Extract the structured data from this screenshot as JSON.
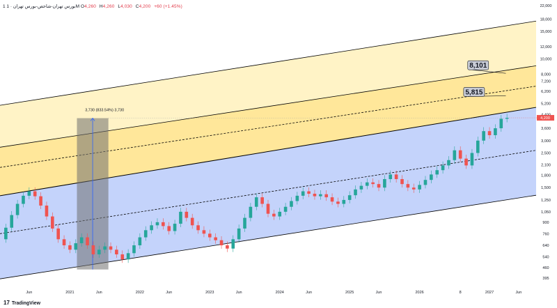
{
  "header": {
    "symbol": "1 بورس تهران-شاخص-بورس تهران · 1M",
    "open_label": "O",
    "open_value": "4,260",
    "high_label": "H",
    "high_value": "4,260",
    "low_label": "L",
    "low_value": "4,030",
    "close_label": "C",
    "close_value": "4,200",
    "change": "+60 (+1.45%)"
  },
  "footer": {
    "logo_mark": "17",
    "brand": "TradingView"
  },
  "colors": {
    "up": "#26a69a",
    "down": "#ef5350",
    "blue_zone": "#c4d3fb",
    "yellow_light": "#fff3c6",
    "yellow_mid": "#ffe79a",
    "measure": "#707070",
    "price_tag": "#ef5350"
  },
  "chart_data": {
    "type": "candlestick",
    "y_scale": "log",
    "ylim": [
      360,
      22000
    ],
    "y_ticks": [
      "22,000",
      "18,000",
      "15,000",
      "12,000",
      "10,000",
      "8,000",
      "7,200",
      "6,200",
      "5,200",
      "4,400",
      "3,600",
      "3,000",
      "2,500",
      "2,100",
      "1,800",
      "1,500",
      "1,250",
      "1,050",
      "900",
      "760",
      "640",
      "540",
      "460",
      "395"
    ],
    "y_tick_values": [
      22000,
      18000,
      15000,
      12000,
      10000,
      8000,
      7200,
      6200,
      5200,
      4400,
      3600,
      3000,
      2500,
      2100,
      1800,
      1500,
      1250,
      1050,
      900,
      760,
      640,
      540,
      460,
      395
    ],
    "x_ticks": [
      "Jun",
      "2021",
      "Jun",
      "2022",
      "Jun",
      "2023",
      "Jun",
      "2024",
      "Jun",
      "2025",
      "Jun",
      "2026",
      "8",
      "2027",
      "Jun"
    ],
    "x_tick_months": [
      5,
      12,
      17,
      24,
      29,
      36,
      41,
      48,
      53,
      60,
      65,
      72,
      79,
      84,
      89
    ],
    "x_start": "2020-01",
    "current_price": "4,200",
    "current_value": 4200,
    "channel": {
      "start_month": 0,
      "end_month": 92,
      "bottom": [
        390,
        1340
      ],
      "lower_mid": [
        760,
        2600
      ],
      "boundary": [
        1330,
        4900
      ],
      "upper_mid": [
        2020,
        6700
      ],
      "upper": [
        2720,
        9050
      ],
      "top": [
        5050,
        17500
      ]
    },
    "callouts": [
      {
        "label": "8,101",
        "value": 8101
      },
      {
        "label": "5,815",
        "value": 5815
      }
    ],
    "measure": {
      "label": "3,730 (833.54%) 3,730",
      "from_value": 448,
      "to_value": 4178,
      "from_month": 16,
      "to_month": 18
    },
    "series": [
      {
        "t": 0,
        "v": 700
      },
      {
        "t": 1,
        "v": 830
      },
      {
        "t": 2,
        "v": 1000
      },
      {
        "t": 3,
        "v": 1180
      },
      {
        "t": 4,
        "v": 1330
      },
      {
        "t": 5,
        "v": 1420
      },
      {
        "t": 6,
        "v": 1320
      },
      {
        "t": 7,
        "v": 1150
      },
      {
        "t": 8,
        "v": 980
      },
      {
        "t": 9,
        "v": 820
      },
      {
        "t": 10,
        "v": 700
      },
      {
        "t": 11,
        "v": 640
      },
      {
        "t": 12,
        "v": 600
      },
      {
        "t": 13,
        "v": 660
      },
      {
        "t": 14,
        "v": 720
      },
      {
        "t": 15,
        "v": 640
      },
      {
        "t": 16,
        "v": 560
      },
      {
        "t": 17,
        "v": 600
      },
      {
        "t": 18,
        "v": 630
      },
      {
        "t": 19,
        "v": 600
      },
      {
        "t": 20,
        "v": 560
      },
      {
        "t": 21,
        "v": 520
      },
      {
        "t": 22,
        "v": 570
      },
      {
        "t": 23,
        "v": 640
      },
      {
        "t": 24,
        "v": 720
      },
      {
        "t": 25,
        "v": 800
      },
      {
        "t": 26,
        "v": 860
      },
      {
        "t": 27,
        "v": 900
      },
      {
        "t": 28,
        "v": 850
      },
      {
        "t": 29,
        "v": 790
      },
      {
        "t": 30,
        "v": 880
      },
      {
        "t": 31,
        "v": 1050
      },
      {
        "t": 32,
        "v": 960
      },
      {
        "t": 33,
        "v": 860
      },
      {
        "t": 34,
        "v": 800
      },
      {
        "t": 35,
        "v": 760
      },
      {
        "t": 36,
        "v": 720
      },
      {
        "t": 37,
        "v": 690
      },
      {
        "t": 38,
        "v": 640
      },
      {
        "t": 39,
        "v": 610
      },
      {
        "t": 40,
        "v": 700
      },
      {
        "t": 41,
        "v": 820
      },
      {
        "t": 42,
        "v": 960
      },
      {
        "t": 43,
        "v": 1130
      },
      {
        "t": 44,
        "v": 1300
      },
      {
        "t": 45,
        "v": 1180
      },
      {
        "t": 46,
        "v": 1020
      },
      {
        "t": 47,
        "v": 980
      },
      {
        "t": 48,
        "v": 1050
      },
      {
        "t": 49,
        "v": 1130
      },
      {
        "t": 50,
        "v": 1230
      },
      {
        "t": 51,
        "v": 1330
      },
      {
        "t": 52,
        "v": 1420
      },
      {
        "t": 53,
        "v": 1370
      },
      {
        "t": 54,
        "v": 1320
      },
      {
        "t": 55,
        "v": 1360
      },
      {
        "t": 56,
        "v": 1300
      },
      {
        "t": 57,
        "v": 1220
      },
      {
        "t": 58,
        "v": 1180
      },
      {
        "t": 59,
        "v": 1250
      },
      {
        "t": 60,
        "v": 1340
      },
      {
        "t": 61,
        "v": 1460
      },
      {
        "t": 62,
        "v": 1540
      },
      {
        "t": 63,
        "v": 1620
      },
      {
        "t": 64,
        "v": 1580
      },
      {
        "t": 65,
        "v": 1500
      },
      {
        "t": 66,
        "v": 1700
      },
      {
        "t": 67,
        "v": 1820
      },
      {
        "t": 68,
        "v": 1700
      },
      {
        "t": 69,
        "v": 1580
      },
      {
        "t": 70,
        "v": 1500
      },
      {
        "t": 71,
        "v": 1460
      },
      {
        "t": 72,
        "v": 1560
      },
      {
        "t": 73,
        "v": 1680
      },
      {
        "t": 74,
        "v": 1820
      },
      {
        "t": 75,
        "v": 1940
      },
      {
        "t": 76,
        "v": 2080
      },
      {
        "t": 77,
        "v": 2250
      },
      {
        "t": 78,
        "v": 2600
      },
      {
        "t": 79,
        "v": 2300
      },
      {
        "t": 80,
        "v": 2080
      },
      {
        "t": 81,
        "v": 2500
      },
      {
        "t": 82,
        "v": 3000
      },
      {
        "t": 83,
        "v": 3450
      },
      {
        "t": 84,
        "v": 3250
      },
      {
        "t": 85,
        "v": 3600
      },
      {
        "t": 86,
        "v": 4140
      },
      {
        "t": 87,
        "v": 4200
      }
    ]
  }
}
